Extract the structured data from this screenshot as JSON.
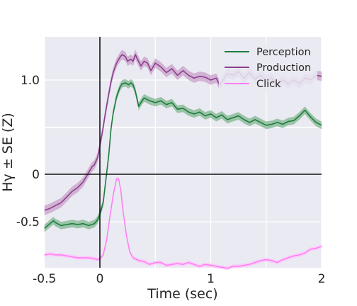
{
  "chart_data": {
    "type": "line",
    "title": "",
    "xlabel": "Time (sec)",
    "ylabel": "Hγ ± SE (Z)",
    "xlim": [
      -0.5,
      2
    ],
    "ylim": [
      -1.0,
      1.5
    ],
    "x_ticks": [
      {
        "value": -0.5,
        "label": "-0.5"
      },
      {
        "value": 0,
        "label": "0"
      },
      {
        "value": 1,
        "label": "1"
      },
      {
        "value": 2,
        "label": "2"
      }
    ],
    "x_grid": [
      -0.5,
      0,
      0.5,
      1,
      1.5,
      2
    ],
    "y_ticks": [
      {
        "value": -0.5,
        "label": "-0.5"
      },
      {
        "value": 0,
        "label": "0"
      },
      {
        "value": 1.0,
        "label": "1.0"
      }
    ],
    "y_grid": [
      -0.5,
      0,
      0.5,
      1.0
    ],
    "grid": true,
    "reference_lines": {
      "x": 0,
      "y": 0
    },
    "legend_position": "top-right",
    "series": [
      {
        "name": "Perception",
        "color": "#1e7b3e",
        "band_color": "#7fb58e",
        "se": 0.04,
        "points": [
          [
            -0.5,
            -0.57
          ],
          [
            -0.45,
            -0.52
          ],
          [
            -0.42,
            -0.49
          ],
          [
            -0.4,
            -0.51
          ],
          [
            -0.35,
            -0.54
          ],
          [
            -0.3,
            -0.53
          ],
          [
            -0.25,
            -0.52
          ],
          [
            -0.2,
            -0.53
          ],
          [
            -0.15,
            -0.52
          ],
          [
            -0.1,
            -0.54
          ],
          [
            -0.05,
            -0.52
          ],
          [
            -0.02,
            -0.48
          ],
          [
            0.0,
            -0.42
          ],
          [
            0.03,
            -0.3
          ],
          [
            0.05,
            -0.1
          ],
          [
            0.08,
            0.2
          ],
          [
            0.1,
            0.48
          ],
          [
            0.12,
            0.65
          ],
          [
            0.15,
            0.82
          ],
          [
            0.18,
            0.92
          ],
          [
            0.2,
            0.96
          ],
          [
            0.23,
            0.97
          ],
          [
            0.26,
            0.95
          ],
          [
            0.28,
            0.97
          ],
          [
            0.3,
            0.95
          ],
          [
            0.32,
            0.88
          ],
          [
            0.35,
            0.72
          ],
          [
            0.38,
            0.78
          ],
          [
            0.4,
            0.81
          ],
          [
            0.45,
            0.78
          ],
          [
            0.5,
            0.76
          ],
          [
            0.55,
            0.78
          ],
          [
            0.6,
            0.74
          ],
          [
            0.65,
            0.76
          ],
          [
            0.7,
            0.69
          ],
          [
            0.75,
            0.7
          ],
          [
            0.8,
            0.66
          ],
          [
            0.85,
            0.64
          ],
          [
            0.9,
            0.66
          ],
          [
            0.95,
            0.62
          ],
          [
            1.0,
            0.64
          ],
          [
            1.05,
            0.6
          ],
          [
            1.1,
            0.63
          ],
          [
            1.15,
            0.58
          ],
          [
            1.2,
            0.6
          ],
          [
            1.25,
            0.62
          ],
          [
            1.3,
            0.58
          ],
          [
            1.35,
            0.55
          ],
          [
            1.4,
            0.58
          ],
          [
            1.45,
            0.55
          ],
          [
            1.5,
            0.52
          ],
          [
            1.55,
            0.53
          ],
          [
            1.6,
            0.55
          ],
          [
            1.65,
            0.53
          ],
          [
            1.7,
            0.56
          ],
          [
            1.75,
            0.57
          ],
          [
            1.8,
            0.62
          ],
          [
            1.85,
            0.68
          ],
          [
            1.9,
            0.61
          ],
          [
            1.95,
            0.55
          ],
          [
            2.0,
            0.52
          ]
        ]
      },
      {
        "name": "Production",
        "color": "#8b3f8e",
        "band_color": "#c89fc8",
        "se": 0.05,
        "points": [
          [
            -0.5,
            -0.38
          ],
          [
            -0.45,
            -0.36
          ],
          [
            -0.4,
            -0.33
          ],
          [
            -0.35,
            -0.3
          ],
          [
            -0.3,
            -0.24
          ],
          [
            -0.25,
            -0.18
          ],
          [
            -0.2,
            -0.14
          ],
          [
            -0.15,
            -0.08
          ],
          [
            -0.1,
            0.02
          ],
          [
            -0.07,
            0.08
          ],
          [
            -0.05,
            0.1
          ],
          [
            -0.02,
            0.18
          ],
          [
            0.0,
            0.3
          ],
          [
            0.03,
            0.5
          ],
          [
            0.05,
            0.65
          ],
          [
            0.08,
            0.85
          ],
          [
            0.1,
            0.98
          ],
          [
            0.12,
            1.08
          ],
          [
            0.15,
            1.18
          ],
          [
            0.18,
            1.24
          ],
          [
            0.2,
            1.27
          ],
          [
            0.23,
            1.25
          ],
          [
            0.25,
            1.2
          ],
          [
            0.28,
            1.22
          ],
          [
            0.3,
            1.2
          ],
          [
            0.32,
            1.27
          ],
          [
            0.34,
            1.22
          ],
          [
            0.37,
            1.15
          ],
          [
            0.4,
            1.2
          ],
          [
            0.43,
            1.18
          ],
          [
            0.46,
            1.1
          ],
          [
            0.5,
            1.18
          ],
          [
            0.55,
            1.14
          ],
          [
            0.6,
            1.08
          ],
          [
            0.65,
            1.12
          ],
          [
            0.7,
            1.05
          ],
          [
            0.75,
            1.1
          ],
          [
            0.8,
            1.05
          ],
          [
            0.85,
            1.02
          ],
          [
            0.9,
            1.04
          ],
          [
            0.95,
            1.03
          ],
          [
            1.0,
            1.0
          ],
          [
            1.05,
            1.02
          ],
          [
            1.08,
            0.95
          ],
          [
            1.1,
            0.98
          ],
          [
            1.15,
            1.07
          ],
          [
            1.2,
            1.05
          ],
          [
            1.25,
            1.09
          ],
          [
            1.3,
            1.02
          ],
          [
            1.35,
            1.08
          ],
          [
            1.4,
            1.01
          ],
          [
            1.45,
            1.05
          ],
          [
            1.5,
            1.0
          ],
          [
            1.55,
            1.02
          ],
          [
            1.6,
            0.95
          ],
          [
            1.65,
            1.0
          ],
          [
            1.7,
            0.96
          ],
          [
            1.75,
            1.0
          ],
          [
            1.8,
            0.96
          ],
          [
            1.85,
            1.02
          ],
          [
            1.9,
            1.0
          ],
          [
            1.95,
            1.05
          ],
          [
            2.0,
            1.04
          ]
        ]
      },
      {
        "name": "Click",
        "color": "#ff80f4",
        "band_color": "#ffc4fa",
        "se": 0.02,
        "points": [
          [
            -0.5,
            -0.85
          ],
          [
            -0.45,
            -0.84
          ],
          [
            -0.4,
            -0.85
          ],
          [
            -0.35,
            -0.85
          ],
          [
            -0.3,
            -0.86
          ],
          [
            -0.25,
            -0.87
          ],
          [
            -0.2,
            -0.88
          ],
          [
            -0.15,
            -0.88
          ],
          [
            -0.1,
            -0.88
          ],
          [
            -0.05,
            -0.89
          ],
          [
            -0.02,
            -0.9
          ],
          [
            0.0,
            -0.89
          ],
          [
            0.03,
            -0.85
          ],
          [
            0.06,
            -0.7
          ],
          [
            0.09,
            -0.45
          ],
          [
            0.12,
            -0.22
          ],
          [
            0.15,
            -0.05
          ],
          [
            0.17,
            -0.05
          ],
          [
            0.19,
            -0.18
          ],
          [
            0.21,
            -0.4
          ],
          [
            0.24,
            -0.65
          ],
          [
            0.27,
            -0.82
          ],
          [
            0.3,
            -0.88
          ],
          [
            0.35,
            -0.91
          ],
          [
            0.4,
            -0.92
          ],
          [
            0.45,
            -0.95
          ],
          [
            0.5,
            -0.93
          ],
          [
            0.55,
            -0.93
          ],
          [
            0.6,
            -0.96
          ],
          [
            0.65,
            -0.95
          ],
          [
            0.7,
            -0.94
          ],
          [
            0.75,
            -0.95
          ],
          [
            0.8,
            -0.93
          ],
          [
            0.85,
            -0.95
          ],
          [
            0.9,
            -0.97
          ],
          [
            0.95,
            -0.95
          ],
          [
            1.0,
            -0.96
          ],
          [
            1.05,
            -0.97
          ],
          [
            1.1,
            -0.98
          ],
          [
            1.15,
            -0.99
          ],
          [
            1.2,
            -0.97
          ],
          [
            1.25,
            -0.97
          ],
          [
            1.3,
            -0.96
          ],
          [
            1.35,
            -0.95
          ],
          [
            1.4,
            -0.93
          ],
          [
            1.45,
            -0.91
          ],
          [
            1.5,
            -0.9
          ],
          [
            1.55,
            -0.91
          ],
          [
            1.6,
            -0.93
          ],
          [
            1.65,
            -0.9
          ],
          [
            1.7,
            -0.88
          ],
          [
            1.75,
            -0.86
          ],
          [
            1.8,
            -0.85
          ],
          [
            1.85,
            -0.83
          ],
          [
            1.9,
            -0.79
          ],
          [
            1.95,
            -0.78
          ],
          [
            2.0,
            -0.76
          ]
        ]
      }
    ]
  }
}
